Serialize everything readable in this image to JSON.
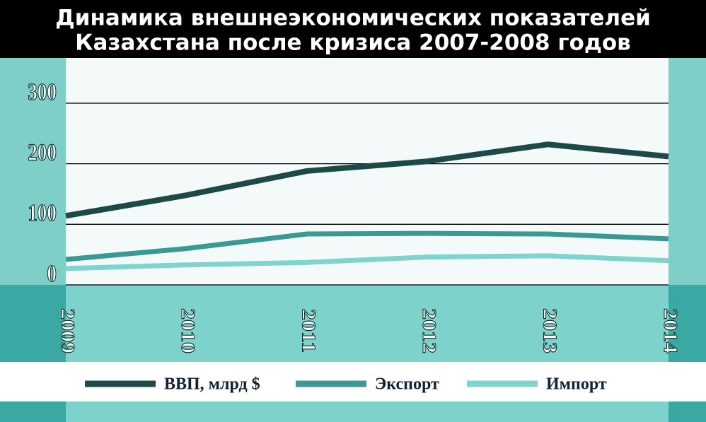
{
  "chart_data": {
    "type": "line",
    "title": [
      "Динамика внешнеэкономических показателей",
      "Казахстана после кризиса 2007-2008 годов"
    ],
    "categories": [
      "2009",
      "2010",
      "2011",
      "2012",
      "2013",
      "2014"
    ],
    "series": [
      {
        "name": "ВВП, млрд $",
        "color": "#1d4a46",
        "values": [
          114,
          148,
          188,
          204,
          232,
          212
        ]
      },
      {
        "name": "Экспорт",
        "color": "#3a9a93",
        "values": [
          42,
          60,
          84,
          85,
          84,
          76
        ]
      },
      {
        "name": "Импорт",
        "color": "#7fd4cd",
        "values": [
          27,
          33,
          37,
          46,
          48,
          40
        ]
      }
    ],
    "ylim": [
      0,
      377
    ],
    "yticks": [
      0,
      100,
      200,
      300
    ],
    "grid": true,
    "legend": "bottom"
  }
}
